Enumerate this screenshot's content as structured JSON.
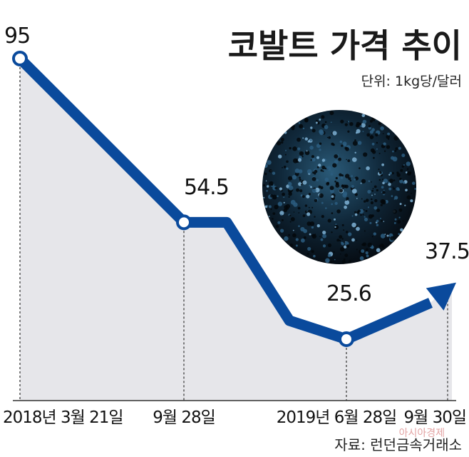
{
  "chart_data": {
    "type": "line",
    "title": "코발트 가격 추이",
    "unit": "단위: 1kg당/달러",
    "x": [
      "2018년 3월 21일",
      "9월 28일",
      "2019년 6월 28일",
      "9월 30일"
    ],
    "points": [
      {
        "x": "2018년 3월 21일",
        "y": 95,
        "label": "95"
      },
      {
        "x": "9월 28일",
        "y": 54.5,
        "label": "54.5"
      },
      {
        "x": "2019년 6월 28일",
        "y": 25.6,
        "label": "25.6"
      },
      {
        "x": "9월 30일",
        "y": 37.5,
        "label": "37.5"
      }
    ],
    "source": "자료: 런던금속거래소",
    "watermark": "아시아경제",
    "colors": {
      "line": "#0a4a9c",
      "area": "#e6e6ea",
      "axis": "#333333"
    }
  }
}
